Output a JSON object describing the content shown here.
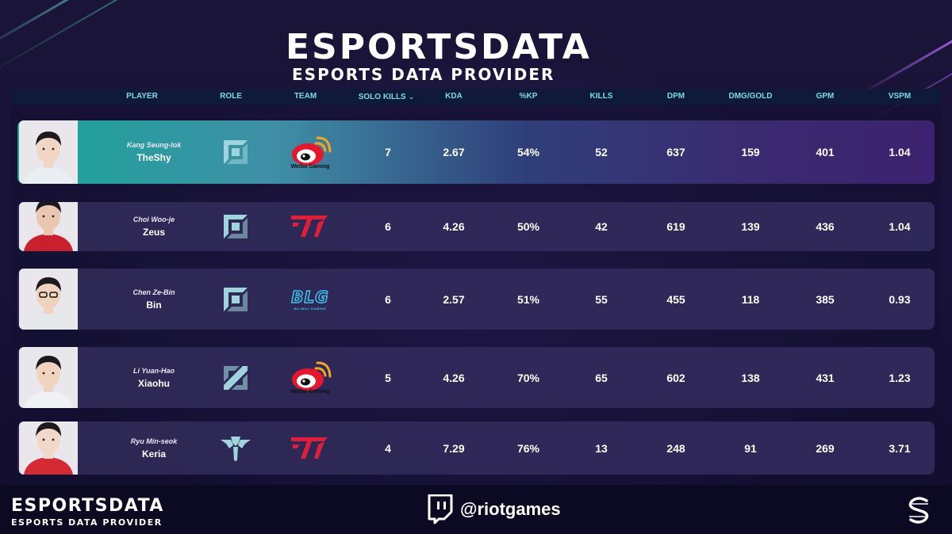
{
  "brand": {
    "wordmark": "ESPORTSDATA",
    "tagline": "ESPORTS DATA PROVIDER"
  },
  "columns": {
    "player": "PLAYER",
    "role": "ROLE",
    "team": "TEAM",
    "solo_kills": "SOLO KILLS",
    "kda": "KDA",
    "kp": "%KP",
    "kills": "KILLS",
    "dpm": "DPM",
    "dmg_gold": "DMG/GOLD",
    "gpm": "GPM",
    "vspm": "VSPM",
    "sort_icon": "chevron-down-icon"
  },
  "players": [
    {
      "real_name": "Kang Seung-lok",
      "nick": "TheShy",
      "role": "top",
      "team": "Weibo Gaming",
      "solo_kills": "7",
      "kda": "2.67",
      "kp": "54%",
      "kills": "52",
      "dpm": "637",
      "dmg_gold": "159",
      "gpm": "401",
      "vspm": "1.04"
    },
    {
      "real_name": "Choi Woo-je",
      "nick": "Zeus",
      "role": "top",
      "team": "T1",
      "solo_kills": "6",
      "kda": "4.26",
      "kp": "50%",
      "kills": "42",
      "dpm": "619",
      "dmg_gold": "139",
      "gpm": "436",
      "vspm": "1.04"
    },
    {
      "real_name": "Chen Ze-Bin",
      "nick": "Bin",
      "role": "top",
      "team": "BLG",
      "solo_kills": "6",
      "kda": "2.57",
      "kp": "51%",
      "kills": "55",
      "dpm": "455",
      "dmg_gold": "118",
      "gpm": "385",
      "vspm": "0.93"
    },
    {
      "real_name": "Li Yuan-Hao",
      "nick": "Xiaohu",
      "role": "mid",
      "team": "Weibo Gaming",
      "solo_kills": "5",
      "kda": "4.26",
      "kp": "70%",
      "kills": "65",
      "dpm": "602",
      "dmg_gold": "138",
      "gpm": "431",
      "vspm": "1.23"
    },
    {
      "real_name": "Ryu Min-seok",
      "nick": "Keria",
      "role": "support",
      "team": "T1",
      "solo_kills": "4",
      "kda": "7.29",
      "kp": "76%",
      "kills": "13",
      "dpm": "248",
      "dmg_gold": "91",
      "gpm": "269",
      "vspm": "3.71"
    }
  ],
  "team_logo_text": {
    "weibo": "Weibo Gaming",
    "blg": "BLG",
    "blg_sub": "BILIBILI GAMING"
  },
  "footer": {
    "wordmark": "ESPORTSDATA",
    "tagline": "ESPORTS DATA PROVIDER",
    "twitch_handle": "@riotgames"
  },
  "colors": {
    "background": "#14102e",
    "header_text": "#7ad9e8",
    "highlight_start": "#1aa59a",
    "row_bg": "#302a58",
    "t1_red": "#e01e37",
    "weibo_red": "#e6162d",
    "blg_cyan": "#3fc3e8",
    "role_icon": "#9fd4dc"
  }
}
